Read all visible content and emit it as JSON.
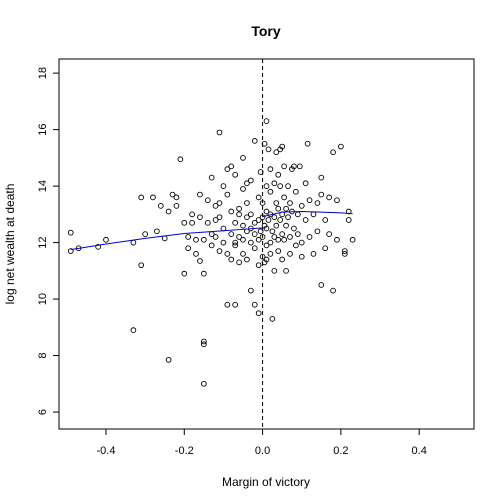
{
  "chart_data": {
    "type": "scatter",
    "title": "Tory",
    "xlabel": "Margin of victory",
    "ylabel": "log net wealth at death",
    "xlim": [
      -0.52,
      0.54
    ],
    "ylim": [
      5.4,
      18.5
    ],
    "xticks": [
      -0.4,
      -0.2,
      0.0,
      0.2,
      0.4
    ],
    "xtick_labels": [
      "-0.4",
      "-0.2",
      "0.0",
      "0.2",
      "0.4"
    ],
    "yticks": [
      6,
      8,
      10,
      12,
      14,
      16,
      18
    ],
    "ytick_labels": [
      "6",
      "8",
      "10",
      "12",
      "14",
      "16",
      "18"
    ],
    "grid": false,
    "cutoff_x": 0.0,
    "points": [
      [
        -0.49,
        12.35
      ],
      [
        -0.49,
        11.7
      ],
      [
        -0.47,
        11.8
      ],
      [
        -0.42,
        11.85
      ],
      [
        -0.4,
        12.1
      ],
      [
        -0.33,
        8.9
      ],
      [
        -0.33,
        12.0
      ],
      [
        -0.31,
        13.6
      ],
      [
        -0.31,
        11.2
      ],
      [
        -0.3,
        12.3
      ],
      [
        -0.28,
        13.6
      ],
      [
        -0.27,
        12.4
      ],
      [
        -0.26,
        13.3
      ],
      [
        -0.25,
        12.15
      ],
      [
        -0.24,
        7.85
      ],
      [
        -0.24,
        13.1
      ],
      [
        -0.23,
        13.7
      ],
      [
        -0.22,
        13.6
      ],
      [
        -0.22,
        13.3
      ],
      [
        -0.21,
        14.95
      ],
      [
        -0.2,
        12.7
      ],
      [
        -0.2,
        10.9
      ],
      [
        -0.19,
        12.2
      ],
      [
        -0.19,
        11.8
      ],
      [
        -0.18,
        13.0
      ],
      [
        -0.18,
        12.7
      ],
      [
        -0.17,
        11.6
      ],
      [
        -0.17,
        12.1
      ],
      [
        -0.16,
        11.35
      ],
      [
        -0.16,
        13.7
      ],
      [
        -0.16,
        12.9
      ],
      [
        -0.15,
        8.5
      ],
      [
        -0.15,
        7.0
      ],
      [
        -0.15,
        8.4
      ],
      [
        -0.15,
        10.9
      ],
      [
        -0.15,
        12.1
      ],
      [
        -0.14,
        12.7
      ],
      [
        -0.14,
        13.5
      ],
      [
        -0.13,
        14.3
      ],
      [
        -0.13,
        11.9
      ],
      [
        -0.13,
        12.3
      ],
      [
        -0.12,
        12.8
      ],
      [
        -0.12,
        13.3
      ],
      [
        -0.12,
        12.2
      ],
      [
        -0.11,
        15.9
      ],
      [
        -0.11,
        13.4
      ],
      [
        -0.11,
        12.9
      ],
      [
        -0.11,
        11.7
      ],
      [
        -0.1,
        12.0
      ],
      [
        -0.1,
        14.0
      ],
      [
        -0.1,
        12.5
      ],
      [
        -0.09,
        14.6
      ],
      [
        -0.09,
        13.7
      ],
      [
        -0.09,
        11.6
      ],
      [
        -0.09,
        9.8
      ],
      [
        -0.08,
        14.7
      ],
      [
        -0.08,
        12.3
      ],
      [
        -0.08,
        13.1
      ],
      [
        -0.08,
        11.4
      ],
      [
        -0.07,
        14.4
      ],
      [
        -0.07,
        12.0
      ],
      [
        -0.07,
        12.7
      ],
      [
        -0.07,
        9.8
      ],
      [
        -0.07,
        11.9
      ],
      [
        -0.06,
        13.2
      ],
      [
        -0.06,
        13.0
      ],
      [
        -0.06,
        12.2
      ],
      [
        -0.06,
        11.3
      ],
      [
        -0.05,
        15.0
      ],
      [
        -0.05,
        13.9
      ],
      [
        -0.05,
        12.6
      ],
      [
        -0.05,
        11.6
      ],
      [
        -0.05,
        12.1
      ],
      [
        -0.04,
        14.1
      ],
      [
        -0.04,
        13.4
      ],
      [
        -0.04,
        12.4
      ],
      [
        -0.04,
        11.4
      ],
      [
        -0.04,
        12.9
      ],
      [
        -0.03,
        14.2
      ],
      [
        -0.03,
        12.0
      ],
      [
        -0.03,
        10.3
      ],
      [
        -0.03,
        13.0
      ],
      [
        -0.03,
        12.5
      ],
      [
        -0.02,
        15.6
      ],
      [
        -0.02,
        12.7
      ],
      [
        -0.02,
        11.8
      ],
      [
        -0.02,
        9.8
      ],
      [
        -0.02,
        12.3
      ],
      [
        -0.01,
        13.6
      ],
      [
        -0.01,
        12.1
      ],
      [
        -0.01,
        11.2
      ],
      [
        -0.01,
        9.5
      ],
      [
        -0.01,
        12.8
      ],
      [
        -0.005,
        12.4
      ],
      [
        -0.005,
        14.5
      ],
      [
        0.0,
        12.9
      ],
      [
        0.0,
        11.5
      ],
      [
        0.0,
        12.2
      ],
      [
        0.0,
        13.4
      ],
      [
        0.005,
        15.5
      ],
      [
        0.005,
        12.6
      ],
      [
        0.005,
        11.3
      ],
      [
        0.01,
        16.3
      ],
      [
        0.01,
        14.0
      ],
      [
        0.01,
        12.5
      ],
      [
        0.01,
        11.9
      ],
      [
        0.01,
        13.1
      ],
      [
        0.01,
        11.4
      ],
      [
        0.015,
        15.3
      ],
      [
        0.015,
        12.8
      ],
      [
        0.02,
        14.6
      ],
      [
        0.02,
        13.0
      ],
      [
        0.02,
        12.0
      ],
      [
        0.02,
        11.6
      ],
      [
        0.02,
        13.8
      ],
      [
        0.025,
        12.4
      ],
      [
        0.025,
        9.3
      ],
      [
        0.03,
        14.1
      ],
      [
        0.03,
        12.9
      ],
      [
        0.03,
        12.2
      ],
      [
        0.03,
        11.0
      ],
      [
        0.035,
        15.2
      ],
      [
        0.035,
        13.4
      ],
      [
        0.035,
        12.6
      ],
      [
        0.04,
        14.4
      ],
      [
        0.04,
        12.1
      ],
      [
        0.04,
        11.7
      ],
      [
        0.04,
        13.2
      ],
      [
        0.045,
        15.3
      ],
      [
        0.045,
        14.0
      ],
      [
        0.045,
        12.8
      ],
      [
        0.05,
        15.4
      ],
      [
        0.05,
        13.0
      ],
      [
        0.05,
        12.3
      ],
      [
        0.05,
        11.4
      ],
      [
        0.055,
        14.7
      ],
      [
        0.055,
        13.6
      ],
      [
        0.055,
        12.1
      ],
      [
        0.06,
        13.2
      ],
      [
        0.06,
        12.6
      ],
      [
        0.06,
        11.0
      ],
      [
        0.065,
        14.0
      ],
      [
        0.065,
        12.9
      ],
      [
        0.07,
        13.4
      ],
      [
        0.07,
        12.2
      ],
      [
        0.07,
        11.6
      ],
      [
        0.075,
        14.6
      ],
      [
        0.075,
        13.1
      ],
      [
        0.08,
        14.7
      ],
      [
        0.08,
        12.5
      ],
      [
        0.085,
        13.8
      ],
      [
        0.085,
        11.9
      ],
      [
        0.09,
        13.0
      ],
      [
        0.09,
        12.3
      ],
      [
        0.095,
        14.7
      ],
      [
        0.1,
        13.3
      ],
      [
        0.1,
        12.0
      ],
      [
        0.1,
        11.5
      ],
      [
        0.11,
        14.1
      ],
      [
        0.11,
        12.8
      ],
      [
        0.115,
        15.5
      ],
      [
        0.12,
        13.5
      ],
      [
        0.12,
        12.2
      ],
      [
        0.13,
        13.0
      ],
      [
        0.13,
        11.6
      ],
      [
        0.14,
        13.4
      ],
      [
        0.14,
        12.4
      ],
      [
        0.15,
        14.3
      ],
      [
        0.15,
        10.5
      ],
      [
        0.15,
        13.7
      ],
      [
        0.16,
        12.8
      ],
      [
        0.16,
        11.8
      ],
      [
        0.17,
        13.6
      ],
      [
        0.17,
        12.3
      ],
      [
        0.18,
        15.2
      ],
      [
        0.18,
        10.3
      ],
      [
        0.19,
        13.5
      ],
      [
        0.19,
        12.1
      ],
      [
        0.2,
        15.4
      ],
      [
        0.21,
        11.6
      ],
      [
        0.21,
        11.7
      ],
      [
        0.22,
        12.8
      ],
      [
        0.22,
        13.1
      ],
      [
        0.23,
        12.1
      ]
    ],
    "fit_left": [
      [
        -0.49,
        11.75
      ],
      [
        -0.4,
        11.95
      ],
      [
        -0.3,
        12.15
      ],
      [
        -0.2,
        12.32
      ],
      [
        -0.1,
        12.42
      ],
      [
        -0.05,
        12.47
      ],
      [
        0.0,
        12.52
      ]
    ],
    "fit_right": [
      [
        0.0,
        12.92
      ],
      [
        0.05,
        13.08
      ],
      [
        0.1,
        13.1
      ],
      [
        0.15,
        13.08
      ],
      [
        0.2,
        13.05
      ],
      [
        0.23,
        13.02
      ]
    ]
  }
}
